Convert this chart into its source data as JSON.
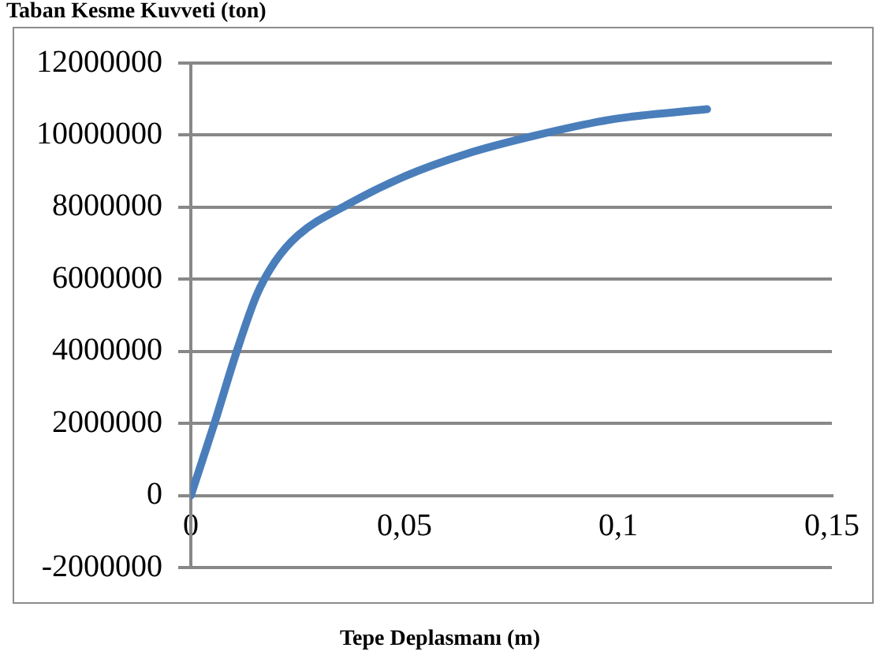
{
  "chart_data": {
    "type": "line",
    "ylabel": "Taban Kesme Kuvveti (ton)",
    "xlabel": "Tepe Deplasmanı (m)",
    "x": [
      0,
      0.0056,
      0.0105,
      0.0154,
      0.0196,
      0.0251,
      0.0363,
      0.0503,
      0.0642,
      0.081,
      0.0992,
      0.1208
    ],
    "series": [
      {
        "color": "#4a7ebb",
        "values": [
          0,
          2030000,
          3910000,
          5560000,
          6470000,
          7220000,
          8050000,
          8870000,
          9470000,
          10000000,
          10450000,
          10720000
        ]
      }
    ],
    "xlim": [
      0,
      0.15
    ],
    "xticks": [
      0,
      {
        "value": 0.05,
        "label": "0,05"
      },
      {
        "value": 0.1,
        "label": "0,1"
      },
      {
        "value": 0.15,
        "label": "0,15"
      }
    ],
    "ylim": [
      -2000000,
      12000000
    ],
    "yticks": [
      -2000000,
      0,
      2000000,
      4000000,
      6000000,
      8000000,
      10000000,
      12000000
    ],
    "grid": "y",
    "legend": false,
    "marker": "none",
    "line_style": "solid"
  }
}
